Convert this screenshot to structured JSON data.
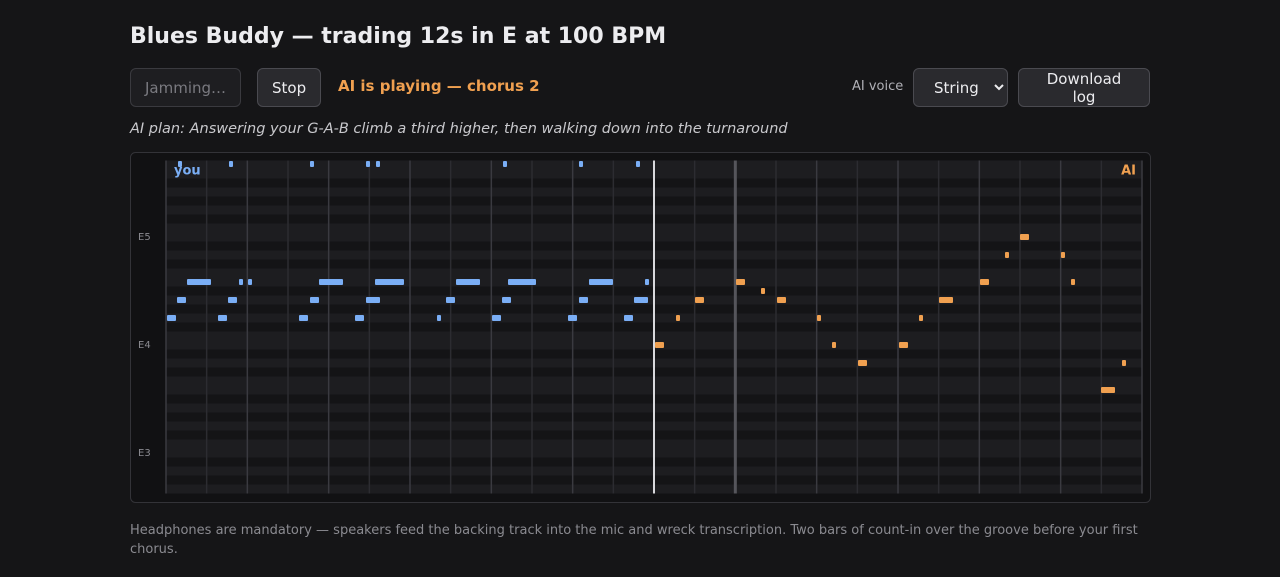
{
  "header": {
    "title": "Blues Buddy — trading 12s in E at 100 BPM"
  },
  "controls": {
    "jam_button": "Jamming…",
    "stop_button": "Stop",
    "status": "AI is playing — chorus 2",
    "voice_label": "AI voice",
    "voice_select": "String",
    "download_button": "Download log"
  },
  "plan": "AI plan: Answering your G-A-B climb a third higher, then walking down into the turnaround",
  "roll": {
    "you_label": "you",
    "ai_label": "AI",
    "pitch_labels": [
      "E5",
      "E4",
      "E3"
    ]
  },
  "footer": "Headphones are mandatory — speakers feed the backing track into the mic and wreck transcription. Two bars of count-in over the groove before your first chorus."
}
